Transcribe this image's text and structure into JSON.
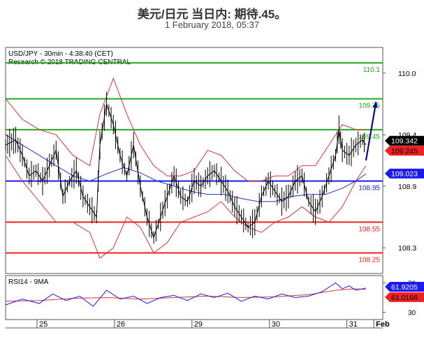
{
  "header": {
    "title": "美元/日元 当日内: 期待.45。",
    "subtitle": "1 February 2018, 05:37"
  },
  "chart_data": {
    "type": "line",
    "main": {
      "info_line1": "USD/JPY - 30min - 4:38:40 (CET)",
      "info_line2": "Research © 2018 TRADING CENTRAL",
      "ylim": [
        108.05,
        110.25
      ],
      "y_ticks": [
        {
          "value": 110.0,
          "label": "110.0"
        },
        {
          "value": 109.4,
          "label": "109.4"
        },
        {
          "value": 108.9,
          "label": "108.9"
        },
        {
          "value": 108.3,
          "label": "108.3"
        }
      ],
      "levels": [
        {
          "value": 110.1,
          "label": "110.1",
          "color": "#22aa22",
          "kind": "resistance"
        },
        {
          "value": 109.75,
          "label": "109.75",
          "color": "#22aa22",
          "kind": "resistance"
        },
        {
          "value": 109.45,
          "label": "109.45",
          "color": "#22aa22",
          "kind": "resistance"
        },
        {
          "value": 108.95,
          "label": "108.95",
          "color": "#1a1aee",
          "kind": "pivot"
        },
        {
          "value": 108.55,
          "label": "108.55",
          "color": "#ee2222",
          "kind": "support"
        },
        {
          "value": 108.25,
          "label": "108.25",
          "color": "#ee2222",
          "kind": "support"
        }
      ],
      "price_tags": [
        {
          "value": 109.342,
          "label": "109.342",
          "bg": "#000000",
          "fg": "#ffffff"
        },
        {
          "value": 109.245,
          "label": "109.245",
          "bg": "#ee2222",
          "fg": "#000000"
        },
        {
          "value": 109.023,
          "label": "109.023",
          "bg": "#1a1aee",
          "fg": "#ffffff"
        }
      ],
      "price_path": [
        [
          0,
          109.3
        ],
        [
          3,
          109.35
        ],
        [
          5,
          109.2
        ],
        [
          7,
          109.0
        ],
        [
          9,
          109.05
        ],
        [
          11,
          108.95
        ],
        [
          13,
          109.1
        ],
        [
          15,
          109.25
        ],
        [
          17,
          108.8
        ],
        [
          19,
          108.95
        ],
        [
          21,
          109.05
        ],
        [
          23,
          108.8
        ],
        [
          25,
          108.7
        ],
        [
          27,
          108.6
        ],
        [
          28,
          109.3
        ],
        [
          30,
          109.7
        ],
        [
          32,
          109.5
        ],
        [
          34,
          109.2
        ],
        [
          36,
          109.0
        ],
        [
          38,
          109.3
        ],
        [
          40,
          108.9
        ],
        [
          42,
          108.6
        ],
        [
          44,
          108.4
        ],
        [
          46,
          108.6
        ],
        [
          48,
          108.8
        ],
        [
          50,
          109.0
        ],
        [
          52,
          108.8
        ],
        [
          54,
          108.75
        ],
        [
          56,
          108.95
        ],
        [
          58,
          108.9
        ],
        [
          60,
          109.0
        ],
        [
          62,
          109.05
        ],
        [
          64,
          108.95
        ],
        [
          66,
          108.85
        ],
        [
          68,
          108.7
        ],
        [
          70,
          108.6
        ],
        [
          72,
          108.5
        ],
        [
          74,
          108.55
        ],
        [
          76,
          108.8
        ],
        [
          78,
          108.95
        ],
        [
          80,
          108.85
        ],
        [
          82,
          108.75
        ],
        [
          84,
          108.8
        ],
        [
          86,
          108.95
        ],
        [
          88,
          109.0
        ],
        [
          90,
          108.75
        ],
        [
          92,
          108.65
        ],
        [
          94,
          108.8
        ],
        [
          96,
          109.0
        ],
        [
          98,
          109.2
        ],
        [
          99,
          109.45
        ],
        [
          100,
          109.25
        ],
        [
          102,
          109.2
        ],
        [
          104,
          109.3
        ],
        [
          106,
          109.35
        ],
        [
          107,
          109.3
        ]
      ],
      "boll_upper": [
        [
          0,
          109.75
        ],
        [
          5,
          109.55
        ],
        [
          10,
          109.45
        ],
        [
          15,
          109.4
        ],
        [
          20,
          109.2
        ],
        [
          25,
          109.1
        ],
        [
          28,
          109.6
        ],
        [
          32,
          109.95
        ],
        [
          36,
          109.6
        ],
        [
          40,
          109.3
        ],
        [
          44,
          109.1
        ],
        [
          48,
          109.0
        ],
        [
          52,
          109.0
        ],
        [
          56,
          109.05
        ],
        [
          60,
          109.25
        ],
        [
          64,
          109.2
        ],
        [
          68,
          109.05
        ],
        [
          72,
          108.95
        ],
        [
          76,
          108.95
        ],
        [
          80,
          109.0
        ],
        [
          84,
          109.0
        ],
        [
          88,
          109.1
        ],
        [
          92,
          109.1
        ],
        [
          96,
          109.3
        ],
        [
          100,
          109.5
        ],
        [
          104,
          109.45
        ],
        [
          107,
          109.45
        ]
      ],
      "boll_lower": [
        [
          0,
          109.2
        ],
        [
          5,
          108.95
        ],
        [
          10,
          108.75
        ],
        [
          15,
          108.55
        ],
        [
          20,
          108.55
        ],
        [
          25,
          108.45
        ],
        [
          28,
          108.2
        ],
        [
          32,
          108.3
        ],
        [
          36,
          108.6
        ],
        [
          40,
          108.5
        ],
        [
          44,
          108.25
        ],
        [
          48,
          108.35
        ],
        [
          52,
          108.55
        ],
        [
          56,
          108.6
        ],
        [
          60,
          108.65
        ],
        [
          64,
          108.75
        ],
        [
          68,
          108.6
        ],
        [
          72,
          108.5
        ],
        [
          76,
          108.45
        ],
        [
          80,
          108.55
        ],
        [
          84,
          108.6
        ],
        [
          88,
          108.7
        ],
        [
          92,
          108.6
        ],
        [
          96,
          108.55
        ],
        [
          100,
          108.7
        ],
        [
          104,
          108.95
        ],
        [
          107,
          109.1
        ]
      ],
      "ma_blue": [
        [
          0,
          109.4
        ],
        [
          5,
          109.3
        ],
        [
          10,
          109.2
        ],
        [
          15,
          109.1
        ],
        [
          20,
          109.0
        ],
        [
          25,
          108.95
        ],
        [
          30,
          109.02
        ],
        [
          35,
          109.08
        ],
        [
          40,
          109.03
        ],
        [
          45,
          108.95
        ],
        [
          50,
          108.9
        ],
        [
          55,
          108.85
        ],
        [
          60,
          108.82
        ],
        [
          65,
          108.82
        ],
        [
          70,
          108.78
        ],
        [
          75,
          108.75
        ],
        [
          80,
          108.75
        ],
        [
          85,
          108.8
        ],
        [
          90,
          108.82
        ],
        [
          95,
          108.82
        ],
        [
          100,
          108.88
        ],
        [
          104,
          108.95
        ],
        [
          107,
          109.02
        ]
      ],
      "forecast_arrow": [
        [
          107,
          109.15
        ],
        [
          110,
          109.72
        ]
      ]
    },
    "rsi": {
      "label": "RSI14 - 9MA",
      "ylim": [
        20,
        80
      ],
      "ticks": [
        {
          "value": 70,
          "label": "70"
        },
        {
          "value": 30,
          "label": "30"
        }
      ],
      "tags": [
        {
          "value": 61.9205,
          "label": "61.9205",
          "bg": "#1a1aee",
          "fg": "#ffffff"
        },
        {
          "value": 61.0166,
          "label": "61.0166",
          "bg": "#ee2222",
          "fg": "#000000"
        }
      ],
      "rsi_line": [
        [
          0,
          40
        ],
        [
          5,
          48
        ],
        [
          10,
          42
        ],
        [
          14,
          55
        ],
        [
          18,
          46
        ],
        [
          22,
          52
        ],
        [
          26,
          38
        ],
        [
          30,
          60
        ],
        [
          34,
          48
        ],
        [
          38,
          52
        ],
        [
          42,
          42
        ],
        [
          46,
          50
        ],
        [
          50,
          53
        ],
        [
          54,
          46
        ],
        [
          58,
          55
        ],
        [
          62,
          50
        ],
        [
          66,
          56
        ],
        [
          70,
          45
        ],
        [
          74,
          52
        ],
        [
          78,
          48
        ],
        [
          82,
          55
        ],
        [
          86,
          50
        ],
        [
          90,
          52
        ],
        [
          94,
          58
        ],
        [
          98,
          70
        ],
        [
          100,
          62
        ],
        [
          102,
          66
        ],
        [
          104,
          60
        ],
        [
          107,
          63
        ]
      ],
      "ma_line": [
        [
          0,
          45
        ],
        [
          10,
          46
        ],
        [
          20,
          49
        ],
        [
          30,
          50
        ],
        [
          40,
          48
        ],
        [
          50,
          50
        ],
        [
          60,
          52
        ],
        [
          70,
          50
        ],
        [
          80,
          51
        ],
        [
          90,
          54
        ],
        [
          98,
          60
        ],
        [
          104,
          62
        ],
        [
          107,
          61
        ]
      ]
    },
    "x_axis": {
      "xlim": [
        0,
        112
      ],
      "day_labels": [
        {
          "x": 11,
          "label": "25",
          "bold": false
        },
        {
          "x": 34,
          "label": "26",
          "bold": false
        },
        {
          "x": 57,
          "label": "29",
          "bold": false
        },
        {
          "x": 80,
          "label": "30",
          "bold": false
        },
        {
          "x": 103,
          "label": "31",
          "bold": false
        },
        {
          "x": 111,
          "label": "Feb",
          "bold": true
        }
      ]
    }
  }
}
